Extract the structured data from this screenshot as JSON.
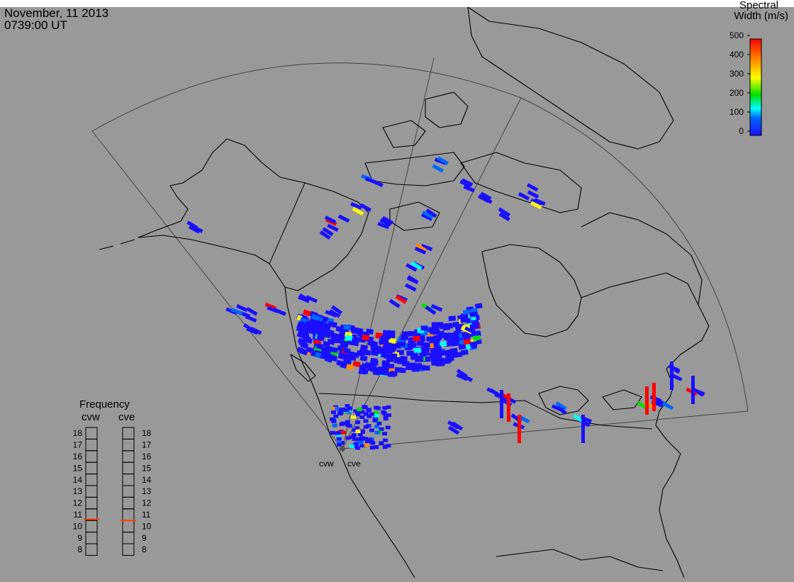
{
  "header": {
    "date": "November, 11 2013",
    "time": "0739:00 UT"
  },
  "colorbar": {
    "title_line1": "Spectral",
    "title_line2": "Width (m/s)",
    "ticks": [
      "500",
      "400",
      "300",
      "200",
      "100",
      "0"
    ],
    "min": 0,
    "max": 500,
    "colors": [
      "#ff0000",
      "#ff8c00",
      "#ffff00",
      "#00dd00",
      "#00ffff",
      "#0066ff",
      "#1a10ff"
    ]
  },
  "frequency_panel": {
    "title": "Frequency",
    "radars": [
      "cvw",
      "cve"
    ],
    "levels": [
      "18",
      "17",
      "16",
      "15",
      "14",
      "13",
      "12",
      "11",
      "10",
      "9",
      "8"
    ],
    "unit_scale_min": 8,
    "unit_scale_max": 18,
    "cvw_frequency": 10.6,
    "cve_frequency": 10.5,
    "marker_color": "#ff4000"
  },
  "radar_sites": {
    "labels": [
      "cvw",
      "cve"
    ]
  },
  "map": {
    "background": "#999999",
    "coast_color": "#000000",
    "fov_color": "#444444"
  }
}
